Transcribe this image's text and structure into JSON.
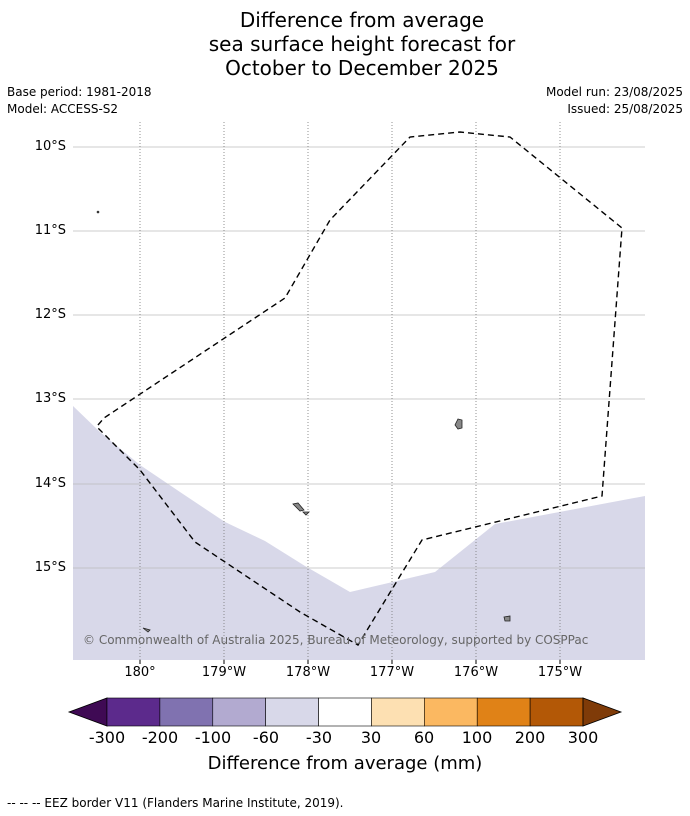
{
  "title": {
    "line1": "Difference from average",
    "line2": "sea surface height forecast for",
    "line3": "October to December 2025"
  },
  "meta": {
    "base_period": "Base period: 1981-2018",
    "model": "Model: ACCESS-S2",
    "model_run": "Model run: 23/08/2025",
    "issued": "Issued: 25/08/2025"
  },
  "map": {
    "lat_labels": [
      "10°S",
      "11°S",
      "12°S",
      "13°S",
      "14°S",
      "15°S"
    ],
    "lon_labels": [
      "180°",
      "179°W",
      "178°W",
      "177°W",
      "176°W",
      "175°W"
    ],
    "copyright": "© Commonwealth of Australia 2025, Bureau of Meteorology, supported by COSPPac",
    "anomaly_fill_color": "#d8d8e9"
  },
  "colorbar": {
    "title": "Difference from average (mm)",
    "tick_labels": [
      "-300",
      "-200",
      "-100",
      "-60",
      "-30",
      "30",
      "60",
      "100",
      "200",
      "300"
    ],
    "colors": [
      "#3f0a54",
      "#5c2a8c",
      "#8072b0",
      "#b2aad0",
      "#d8d8e9",
      "#ffffff",
      "#fde0b2",
      "#fbb861",
      "#e08217",
      "#b35806",
      "#7f3b08"
    ]
  },
  "footnote": "--  --  -- EEZ border V11 (Flanders Marine Institute, 2019)."
}
